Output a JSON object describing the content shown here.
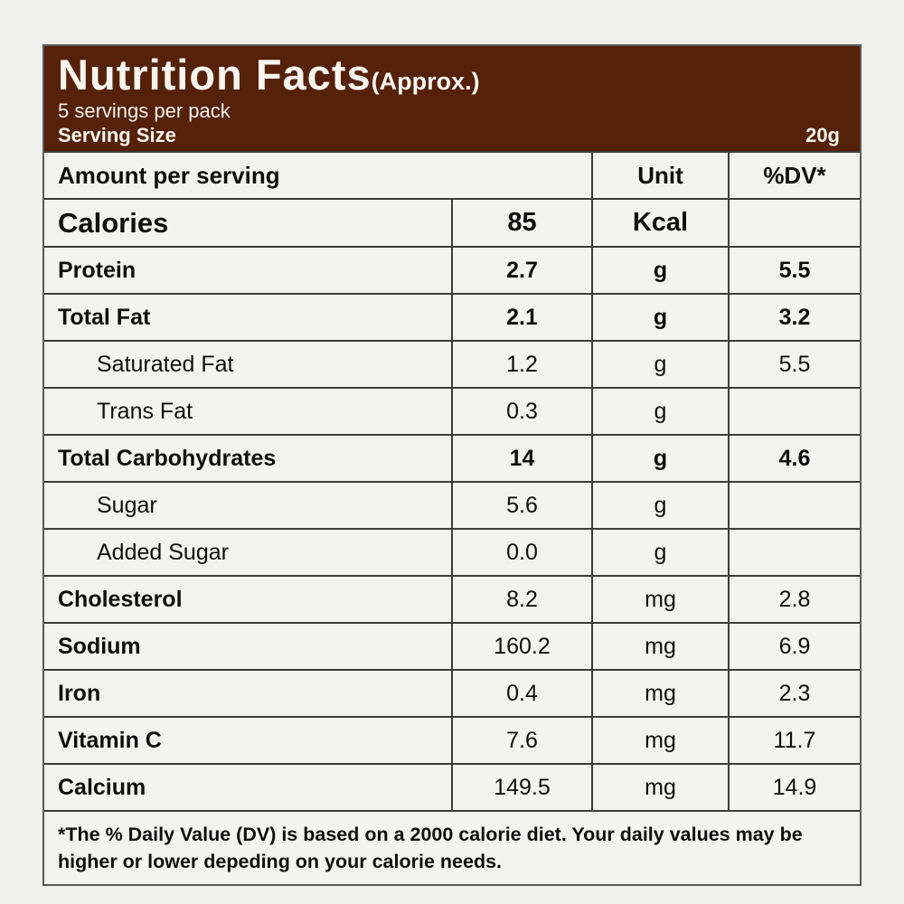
{
  "colors": {
    "header_background": "#552108",
    "header_text": "#f8f4ee",
    "page_background": "#f0f0ee",
    "cell_background": "#f3f3f1",
    "border": "#3c3c3c"
  },
  "header": {
    "title": "Nutrition Facts",
    "title_suffix": "(Approx.)",
    "servings_line": "5 servings per pack",
    "serving_size_label": "Serving Size",
    "serving_size_value": "20g"
  },
  "table": {
    "columns": {
      "amount": "Amount per serving",
      "unit": "Unit",
      "dv": "%DV*"
    },
    "rows": [
      {
        "name": "Calories",
        "value": "85",
        "unit": "Kcal",
        "dv": "",
        "style": "calories"
      },
      {
        "name": "Protein",
        "value": "2.7",
        "unit": "g",
        "dv": "5.5",
        "style": "bold"
      },
      {
        "name": "Total Fat",
        "value": "2.1",
        "unit": "g",
        "dv": "3.2",
        "style": "bold"
      },
      {
        "name": "Saturated Fat",
        "value": "1.2",
        "unit": "g",
        "dv": "5.5",
        "style": "sub"
      },
      {
        "name": "Trans Fat",
        "value": "0.3",
        "unit": "g",
        "dv": "",
        "style": "sub"
      },
      {
        "name": "Total Carbohydrates",
        "value": "14",
        "unit": "g",
        "dv": "4.6",
        "style": "bold"
      },
      {
        "name": "Sugar",
        "value": "5.6",
        "unit": "g",
        "dv": "",
        "style": "sub"
      },
      {
        "name": "Added Sugar",
        "value": "0.0",
        "unit": "g",
        "dv": "",
        "style": "sub"
      },
      {
        "name": "Cholesterol",
        "value": "8.2",
        "unit": "mg",
        "dv": "2.8",
        "style": "label-bold"
      },
      {
        "name": "Sodium",
        "value": "160.2",
        "unit": "mg",
        "dv": "6.9",
        "style": "label-bold"
      },
      {
        "name": "Iron",
        "value": "0.4",
        "unit": "mg",
        "dv": "2.3",
        "style": "label-bold"
      },
      {
        "name": "Vitamin C",
        "value": "7.6",
        "unit": "mg",
        "dv": "11.7",
        "style": "label-bold"
      },
      {
        "name": "Calcium",
        "value": "149.5",
        "unit": "mg",
        "dv": "14.9",
        "style": "label-bold"
      }
    ],
    "footnote": "*The % Daily Value (DV) is based on a 2000 calorie diet. Your daily values may be higher or lower depeding on your calorie needs."
  }
}
